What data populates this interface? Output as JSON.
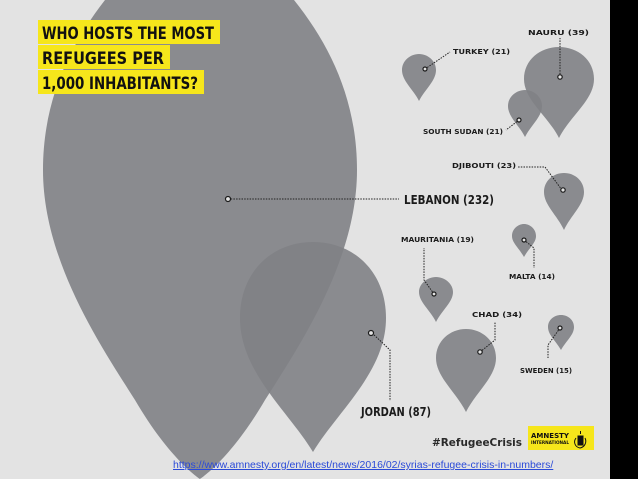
{
  "title": [
    "WHO HOSTS THE MOST",
    "REFUGEES PER",
    "1,000 INHABITANTS?"
  ],
  "countries": [
    {
      "name": "LEBANON",
      "value": 232,
      "label": "LEBANON (232)"
    },
    {
      "name": "JORDAN",
      "value": 87,
      "label": "JORDAN (87)"
    },
    {
      "name": "NAURU",
      "value": 39,
      "label": "NAURU (39)"
    },
    {
      "name": "CHAD",
      "value": 34,
      "label": "CHAD (34)"
    },
    {
      "name": "DJIBOUTI",
      "value": 23,
      "label": "DJIBOUTI (23)"
    },
    {
      "name": "TURKEY",
      "value": 21,
      "label": "TURKEY (21)"
    },
    {
      "name": "SOUTH SUDAN",
      "value": 21,
      "label": "SOUTH SUDAN (21)"
    },
    {
      "name": "MAURITANIA",
      "value": 19,
      "label": "MAURITANIA (19)"
    },
    {
      "name": "SWEDEN",
      "value": 15,
      "label": "SWEDEN (15)"
    },
    {
      "name": "MALTA",
      "value": 14,
      "label": "MALTA (14)"
    }
  ],
  "hashtag": "#RefugeeCrisis",
  "logo": {
    "line1": "AMNESTY",
    "line2": "INTERNATIONAL"
  },
  "source_url": "https://www.amnesty.org/en/latest/news/2016/02/syrias-refugee-crisis-in-numbers/",
  "colors": {
    "pin": "#7f8185",
    "background": "#e3e3e3",
    "highlight": "#f6e61b",
    "slide_bg": "#000000"
  }
}
